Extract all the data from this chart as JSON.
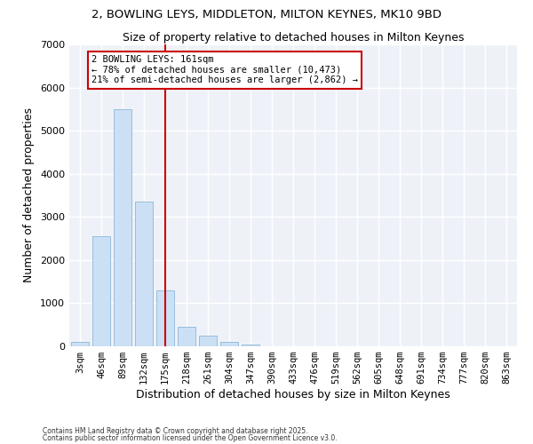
{
  "title_line1": "2, BOWLING LEYS, MIDDLETON, MILTON KEYNES, MK10 9BD",
  "title_line2": "Size of property relative to detached houses in Milton Keynes",
  "xlabel": "Distribution of detached houses by size in Milton Keynes",
  "ylabel": "Number of detached properties",
  "categories": [
    "3sqm",
    "46sqm",
    "89sqm",
    "132sqm",
    "175sqm",
    "218sqm",
    "261sqm",
    "304sqm",
    "347sqm",
    "390sqm",
    "433sqm",
    "476sqm",
    "519sqm",
    "562sqm",
    "605sqm",
    "648sqm",
    "691sqm",
    "734sqm",
    "777sqm",
    "820sqm",
    "863sqm"
  ],
  "values": [
    100,
    2550,
    5500,
    3350,
    1300,
    450,
    250,
    100,
    50,
    5,
    2,
    1,
    0,
    0,
    0,
    0,
    0,
    0,
    0,
    0,
    0
  ],
  "bar_color": "#cce0f5",
  "bar_edge_color": "#8ab8d8",
  "vline_index": 4,
  "vline_color": "#cc0000",
  "annotation_text": "2 BOWLING LEYS: 161sqm\n← 78% of detached houses are smaller (10,473)\n21% of semi-detached houses are larger (2,862) →",
  "annotation_box_color": "#cc0000",
  "background_color": "#eef2f8",
  "ylim": [
    0,
    7000
  ],
  "yticks": [
    0,
    1000,
    2000,
    3000,
    4000,
    5000,
    6000,
    7000
  ],
  "footer_line1": "Contains HM Land Registry data © Crown copyright and database right 2025.",
  "footer_line2": "Contains public sector information licensed under the Open Government Licence v3.0."
}
